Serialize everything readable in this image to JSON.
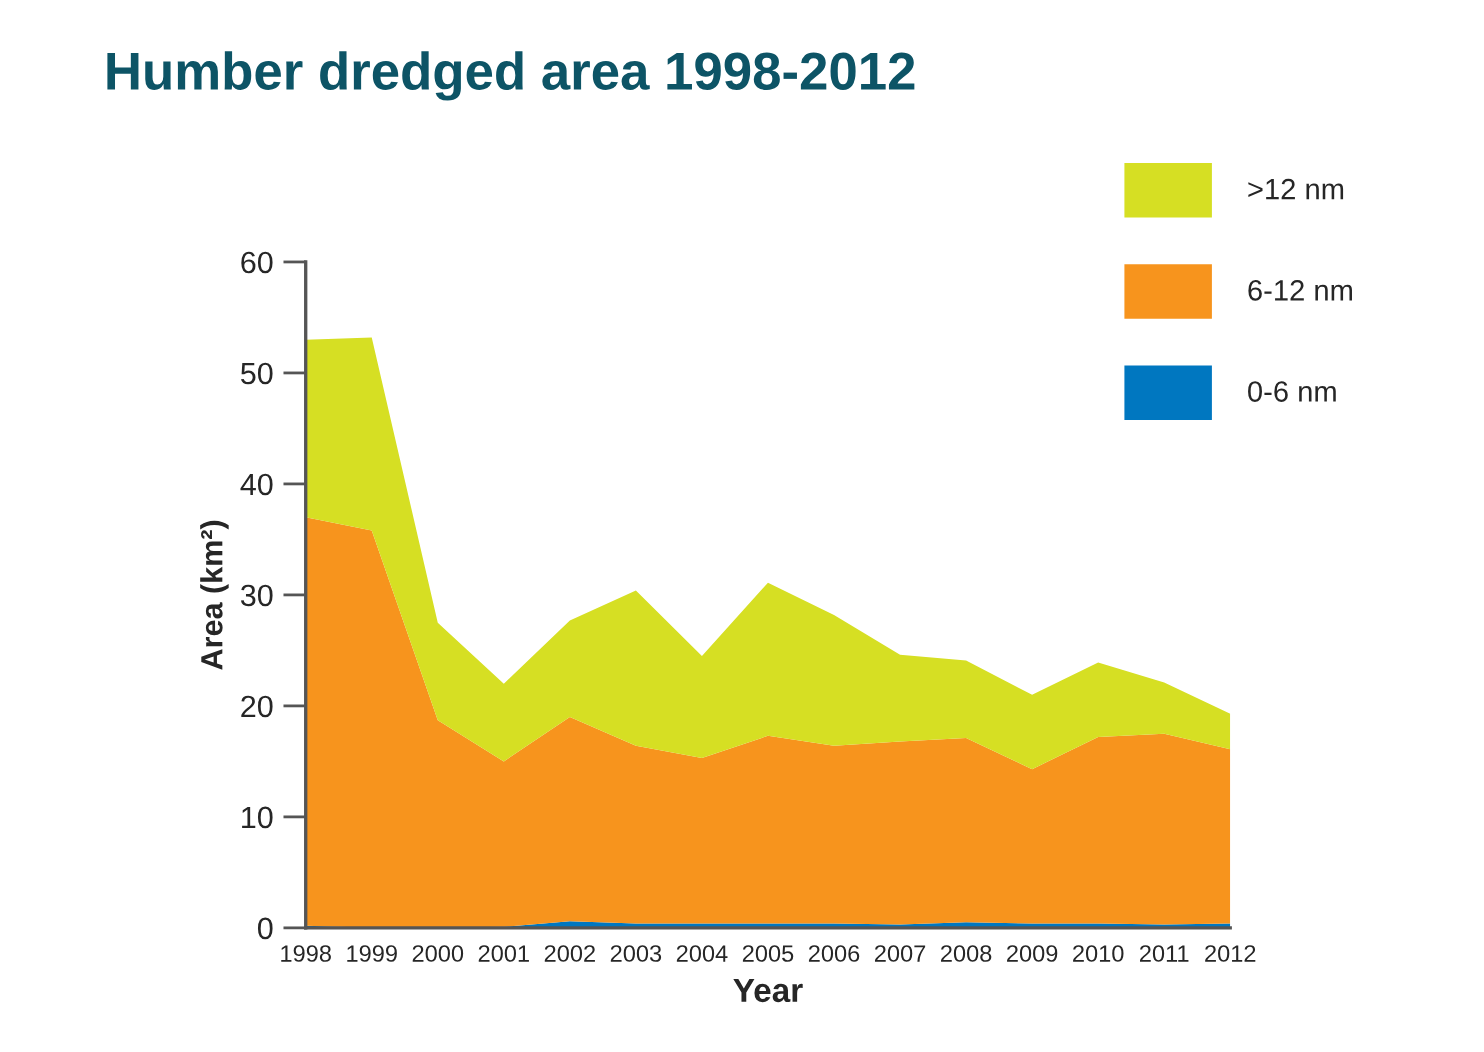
{
  "chart_data": {
    "type": "area",
    "stacked": true,
    "title": "Humber dredged area 1998-2012",
    "xlabel": "Year",
    "ylabel": "Area (km²)",
    "x": [
      1998,
      1999,
      2000,
      2001,
      2002,
      2003,
      2004,
      2005,
      2006,
      2007,
      2008,
      2009,
      2010,
      2011,
      2012
    ],
    "series": [
      {
        "name": "0-6 nm",
        "color": "#0077c0",
        "values": [
          0.2,
          0.0,
          0.0,
          0.1,
          0.6,
          0.4,
          0.4,
          0.4,
          0.4,
          0.3,
          0.5,
          0.4,
          0.4,
          0.3,
          0.4
        ]
      },
      {
        "name": "6-12 nm",
        "color": "#f7941d",
        "values": [
          36.8,
          35.8,
          18.7,
          14.9,
          18.4,
          16.0,
          14.9,
          16.9,
          16.0,
          16.5,
          16.6,
          13.9,
          16.8,
          17.2,
          15.7
        ]
      },
      {
        "name": ">12 nm",
        "color": "#d6df23",
        "values": [
          16.0,
          17.4,
          8.8,
          7.0,
          8.7,
          14.0,
          9.2,
          13.8,
          11.8,
          7.8,
          7.0,
          6.7,
          6.7,
          4.6,
          3.2
        ]
      }
    ],
    "xlim": [
      1998,
      2012
    ],
    "xticks": [
      1998,
      1999,
      2000,
      2001,
      2002,
      2003,
      2004,
      2005,
      2006,
      2007,
      2008,
      2009,
      2010,
      2011,
      2012
    ],
    "ylim": [
      0,
      60
    ],
    "yticks": [
      0,
      10,
      20,
      30,
      40,
      50,
      60
    ],
    "grid": false,
    "legend": "top right"
  }
}
